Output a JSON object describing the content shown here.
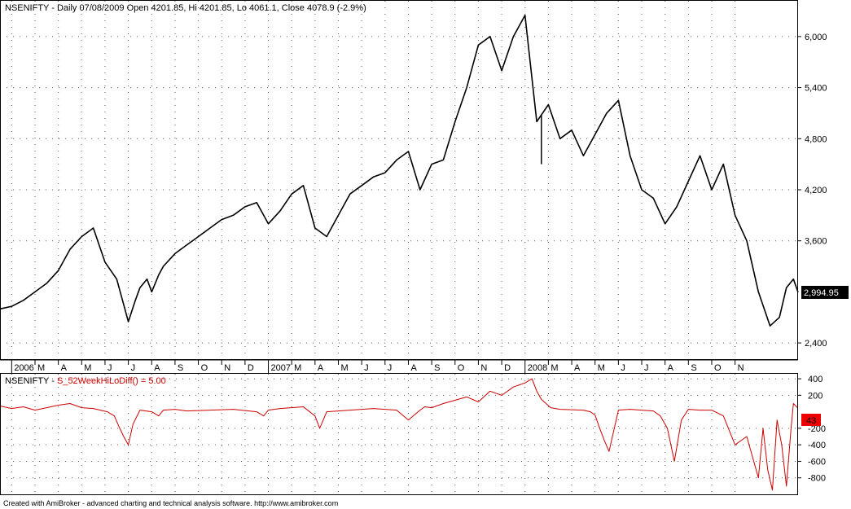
{
  "chart_data": [
    {
      "type": "line",
      "title": "NSENIFTY - Daily 07/08/2009 Open 4201.85, Hi 4201.85, Lo 4061.1, Close 4078.9 (-2.9%)",
      "xlabel": "",
      "ylabel": "",
      "x_ticks": [
        "2006",
        "M",
        "A",
        "M",
        "J",
        "J",
        "A",
        "S",
        "O",
        "N",
        "D",
        "2007",
        "M",
        "A",
        "M",
        "J",
        "J",
        "A",
        "S",
        "O",
        "N",
        "D",
        "2008",
        "M",
        "A",
        "M",
        "J",
        "J",
        "A",
        "S",
        "O",
        "N"
      ],
      "x_range": [
        0,
        34.2
      ],
      "ylim": [
        2200,
        6420
      ],
      "y_ticks": [
        "2,400",
        "3,600",
        "4,200",
        "4,800",
        "5,400",
        "6,000"
      ],
      "y_tick_values": [
        2400,
        3600,
        4200,
        4800,
        5400,
        6000
      ],
      "last_value_label": "2,994.95",
      "last_value": 2994.95,
      "grid": true,
      "series": [
        {
          "color": "#000000",
          "x": [
            0,
            0.5,
            1,
            1.5,
            2,
            2.5,
            3,
            3.5,
            4,
            4.5,
            5,
            5.3,
            5.5,
            5.8,
            6,
            6.3,
            6.5,
            6.8,
            7,
            7.5,
            8,
            8.5,
            9,
            9.5,
            10,
            10.5,
            11,
            11.5,
            12,
            12.5,
            13,
            13.5,
            14,
            14.5,
            15,
            15.5,
            16,
            16.5,
            17,
            17.5,
            18,
            18.5,
            19,
            19.5,
            20,
            20.5,
            21,
            21.5,
            22,
            22.5,
            23,
            23.5,
            24,
            24.5,
            25,
            25.5,
            26,
            26.5,
            27,
            27.5,
            28,
            28.5,
            29,
            29.5,
            30,
            30.5,
            31,
            31.5,
            32,
            32.5,
            33,
            33.4,
            33.7,
            34,
            34.2
          ],
          "y": [
            2800,
            2830,
            2900,
            3000,
            3100,
            3250,
            3500,
            3650,
            3750,
            3350,
            3150,
            2850,
            2650,
            2900,
            3050,
            3150,
            3000,
            3200,
            3300,
            3450,
            3550,
            3650,
            3750,
            3850,
            3900,
            4000,
            4050,
            3800,
            3950,
            4150,
            4250,
            3750,
            3650,
            3900,
            4150,
            4250,
            4350,
            4400,
            4550,
            4650,
            4200,
            4500,
            4550,
            5000,
            5400,
            5900,
            6000,
            5600,
            6000,
            6250,
            5000,
            5200,
            4800,
            4900,
            4600,
            4850,
            5100,
            5250,
            4600,
            4200,
            4100,
            3800,
            4000,
            4300,
            4600,
            4200,
            4500,
            3900,
            3600,
            3000,
            2600,
            2700,
            3050,
            3150,
            2995
          ]
        },
        {
          "color": "#000000",
          "x": [
            23.2
          ],
          "y": [
            4500
          ]
        }
      ]
    },
    {
      "type": "line",
      "title_prefix": "NSENIFTY - ",
      "title": "S_52WeekHiLoDiff() = 5.00",
      "xlabel": "",
      "ylabel": "",
      "ylim": [
        -1000,
        460
      ],
      "y_ticks": [
        "-800",
        "-600",
        "-400",
        "-200",
        "200",
        "400"
      ],
      "y_tick_values": [
        -800,
        -600,
        -400,
        -200,
        200,
        400
      ],
      "last_value_label": "43",
      "last_value": 43,
      "grid": true,
      "series": [
        {
          "color": "#cc0000",
          "x": [
            0,
            0.5,
            1,
            1.5,
            2,
            2.5,
            3,
            3.5,
            4,
            4.3,
            4.6,
            4.9,
            5.1,
            5.3,
            5.5,
            5.7,
            6,
            6.5,
            6.8,
            7,
            7.5,
            8,
            9,
            10,
            11,
            11.3,
            11.5,
            12,
            13,
            13.5,
            13.7,
            14,
            15,
            16,
            17,
            17.5,
            18,
            18.2,
            18.5,
            19,
            20,
            20.5,
            21,
            21.5,
            22,
            22.5,
            22.8,
            23,
            23.2,
            23.4,
            23.6,
            24,
            25,
            25.3,
            25.5,
            25.7,
            25.9,
            26.1,
            26.5,
            27,
            27.5,
            28,
            28.3,
            28.6,
            28.9,
            29.2,
            29.5,
            30,
            30.5,
            31,
            31.5,
            32,
            32.3,
            32.5,
            32.7,
            32.9,
            33.1,
            33.3,
            33.5,
            33.7,
            33.9,
            34,
            34.2
          ],
          "y": [
            70,
            40,
            60,
            20,
            50,
            80,
            100,
            50,
            40,
            20,
            0,
            -50,
            -180,
            -300,
            -400,
            -150,
            20,
            0,
            -50,
            20,
            30,
            10,
            20,
            30,
            0,
            -50,
            20,
            40,
            60,
            -50,
            -200,
            0,
            20,
            40,
            20,
            -100,
            20,
            60,
            50,
            100,
            180,
            120,
            250,
            200,
            300,
            350,
            400,
            250,
            150,
            100,
            50,
            30,
            20,
            0,
            -40,
            -200,
            -350,
            -480,
            20,
            30,
            20,
            10,
            -50,
            -200,
            -600,
            -100,
            30,
            20,
            20,
            -50,
            -400,
            -300,
            -600,
            -800,
            -200,
            -700,
            -950,
            -100,
            -400,
            -900,
            -200,
            100,
            43
          ]
        }
      ]
    }
  ],
  "footer": "Created with AmiBroker - advanced charting and technical analysis software. http://www.amibroker.com"
}
